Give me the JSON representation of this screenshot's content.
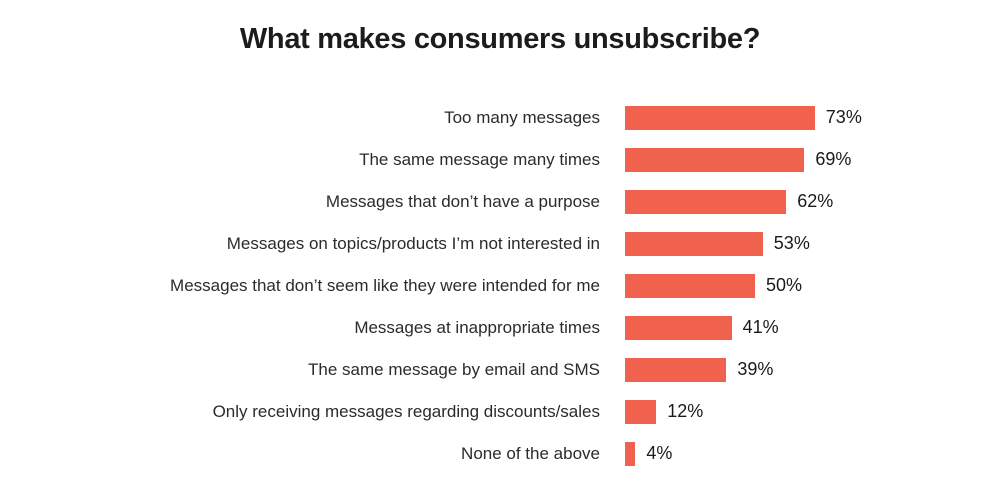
{
  "title": "What makes consumers unsubscribe?",
  "colors": {
    "bar": "#f0624e",
    "title_text": "#1c1c1c",
    "category_text": "#2b2b2b",
    "value_text": "#1a1a1a",
    "background": "#ffffff"
  },
  "chart_data": {
    "type": "bar",
    "orientation": "horizontal",
    "title": "What makes consumers unsubscribe?",
    "categories": [
      "Too many messages",
      "The same message many times",
      "Messages that don’t have a purpose",
      "Messages on topics/products I’m not interested in",
      "Messages that don’t seem like they were intended for me",
      "Messages at inappropriate times",
      "The same message by email and SMS",
      "Only receiving messages regarding discounts/sales",
      "None of the above"
    ],
    "values": [
      73,
      69,
      62,
      53,
      50,
      41,
      39,
      12,
      4
    ],
    "value_labels": [
      "73%",
      "69%",
      "62%",
      "53%",
      "50%",
      "41%",
      "39%",
      "12%",
      "4%"
    ],
    "value_suffix": "%",
    "xlim": [
      0,
      100
    ],
    "grid": false,
    "legend": false,
    "axis_ticks_visible": false,
    "bar_color": "#f0624e"
  }
}
